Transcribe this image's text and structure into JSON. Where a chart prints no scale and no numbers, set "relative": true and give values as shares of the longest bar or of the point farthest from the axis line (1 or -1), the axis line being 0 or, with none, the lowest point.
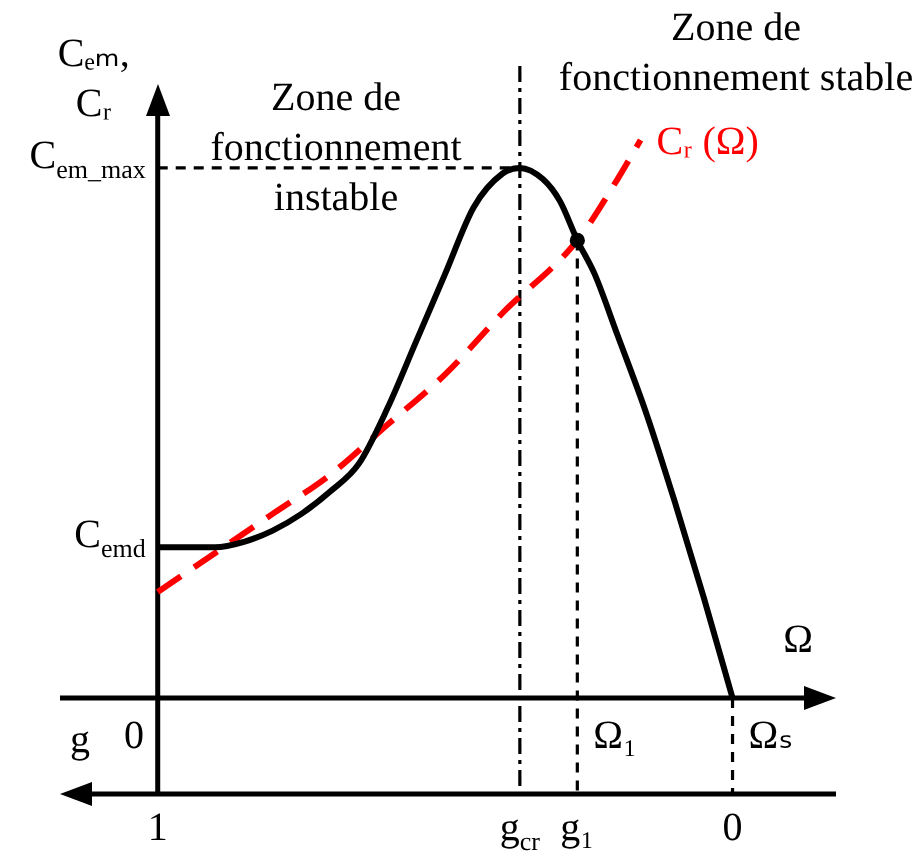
{
  "chart_data": {
    "type": "line",
    "relative": true,
    "marker": "none",
    "xlabel": "g",
    "x2label": "Ω",
    "ylabel": "Cₑₘ,\nCᵣ",
    "xlim": [
      1.17,
      -0.18
    ],
    "xticks": [
      1,
      {
        "value": 0.37,
        "label": "g$_{cr}$"
      },
      {
        "value": 0.27,
        "label": "g₁"
      },
      0
    ],
    "series": [
      {
        "color": "#000000",
        "x": [
          1,
          0.95,
          0.9,
          0.85,
          0.8,
          0.75,
          0.7,
          0.65,
          0.6,
          0.55,
          0.5,
          0.45,
          0.4,
          0.37,
          0.33,
          0.3,
          0.27,
          0.24,
          0.2,
          0.15,
          0.1,
          0.05,
          0
        ],
        "values": [
          0.27,
          0.27,
          0.27,
          0.28,
          0.3,
          0.33,
          0.37,
          0.42,
          0.52,
          0.64,
          0.76,
          0.88,
          0.94,
          0.95,
          0.93,
          0.89,
          0.82,
          0.76,
          0.65,
          0.51,
          0.35,
          0.18,
          0
        ]
      },
      {
        "name": "Cᵣ (Ω)",
        "color": "#ff0000",
        "line_style": "dashed",
        "x": [
          1,
          0.9,
          0.8,
          0.7,
          0.6,
          0.5,
          0.4,
          0.27,
          0.2,
          0.16
        ],
        "values": [
          0.19,
          0.26,
          0.33,
          0.4,
          0.49,
          0.58,
          0.69,
          0.82,
          0.93,
          1
        ]
      },
      {
        "type": "scatter",
        "color": "#000000",
        "marker": "circle",
        "x": [
          0.27
        ],
        "values": [
          0.82
        ]
      }
    ],
    "ref_lines": [
      {
        "axis": "x",
        "value": 1,
        "color": "#000000",
        "line_style": "solid"
      },
      {
        "axis": "y",
        "value": 0.95,
        "label": "C$_{em_max}$",
        "color": "#000000",
        "line_style": "dashed"
      },
      {
        "axis": "x",
        "value": 0.37,
        "color": "#000000",
        "line_style": "dashdot"
      },
      {
        "axis": "x",
        "value": 0.27,
        "label": "Ω₁",
        "color": "#000000",
        "line_style": "dashed"
      },
      {
        "axis": "x",
        "value": 0,
        "label": "Ωₛ",
        "color": "#000000",
        "line_style": "dashed"
      }
    ],
    "annotations": [
      "Zone de fonctionnement instable",
      "Zone de fonctionnement stable",
      "0",
      {
        "text": "C$_{emd}$",
        "x": 1,
        "y": 0.27
      }
    ]
  }
}
